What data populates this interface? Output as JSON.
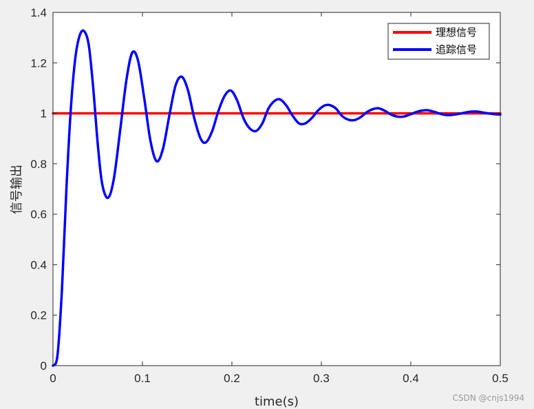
{
  "chart_data": {
    "type": "line",
    "xlabel": "time(s)",
    "ylabel": "信号输出",
    "xlim": [
      0,
      0.5
    ],
    "ylim": [
      0,
      1.4
    ],
    "x_ticks": [
      0,
      0.1,
      0.2,
      0.3,
      0.4,
      0.5
    ],
    "x_tick_labels": [
      "0",
      "0.1",
      "0.2",
      "0.3",
      "0.4",
      "0.5"
    ],
    "y_ticks": [
      0,
      0.2,
      0.4,
      0.6,
      0.8,
      1,
      1.2,
      1.4
    ],
    "y_tick_labels": [
      "0",
      "0.2",
      "0.4",
      "0.6",
      "0.8",
      "1",
      "1.2",
      "1.4"
    ],
    "grid": false,
    "legend_position": "top-right",
    "series": [
      {
        "name": "理想信号",
        "color": "#ff0000",
        "x": [
          0,
          0.5
        ],
        "y": [
          1,
          1
        ]
      },
      {
        "name": "追踪信号",
        "color": "#0000ff",
        "x": [
          0,
          0.005,
          0.01,
          0.015,
          0.02,
          0.025,
          0.03,
          0.035,
          0.04,
          0.045,
          0.05,
          0.055,
          0.0615,
          0.068,
          0.075,
          0.082,
          0.0885,
          0.095,
          0.102,
          0.109,
          0.116,
          0.123,
          0.13,
          0.137,
          0.144,
          0.151,
          0.158,
          0.165,
          0.171,
          0.178,
          0.185,
          0.192,
          0.199,
          0.206,
          0.213,
          0.22,
          0.227,
          0.234,
          0.241,
          0.248,
          0.254,
          0.261,
          0.268,
          0.275,
          0.282,
          0.289,
          0.296,
          0.303,
          0.309,
          0.316,
          0.323,
          0.33,
          0.337,
          0.344,
          0.351,
          0.358,
          0.364,
          0.371,
          0.378,
          0.385,
          0.392,
          0.399,
          0.406,
          0.413,
          0.419,
          0.426,
          0.433,
          0.44,
          0.447,
          0.454,
          0.461,
          0.468,
          0.474,
          0.481,
          0.488,
          0.495,
          0.5
        ],
        "y": [
          0,
          0.04,
          0.3,
          0.7,
          1.02,
          1.22,
          1.31,
          1.325,
          1.27,
          1.1,
          0.88,
          0.72,
          0.665,
          0.74,
          0.93,
          1.13,
          1.24,
          1.21,
          1.06,
          0.89,
          0.81,
          0.86,
          0.99,
          1.11,
          1.145,
          1.09,
          0.98,
          0.9,
          0.885,
          0.93,
          1.01,
          1.07,
          1.09,
          1.05,
          0.98,
          0.94,
          0.93,
          0.96,
          1.02,
          1.05,
          1.055,
          1.03,
          0.99,
          0.96,
          0.96,
          0.98,
          1.01,
          1.03,
          1.033,
          1.02,
          0.99,
          0.975,
          0.973,
          0.985,
          1.005,
          1.017,
          1.02,
          1.01,
          0.995,
          0.987,
          0.987,
          0.995,
          1.005,
          1.011,
          1.012,
          1.006,
          0.998,
          0.993,
          0.994,
          0.998,
          1.003,
          1.007,
          1.007,
          1.003,
          0.999,
          0.996,
          0.995
        ]
      }
    ]
  },
  "watermark": "CSDN @cnjs1994"
}
